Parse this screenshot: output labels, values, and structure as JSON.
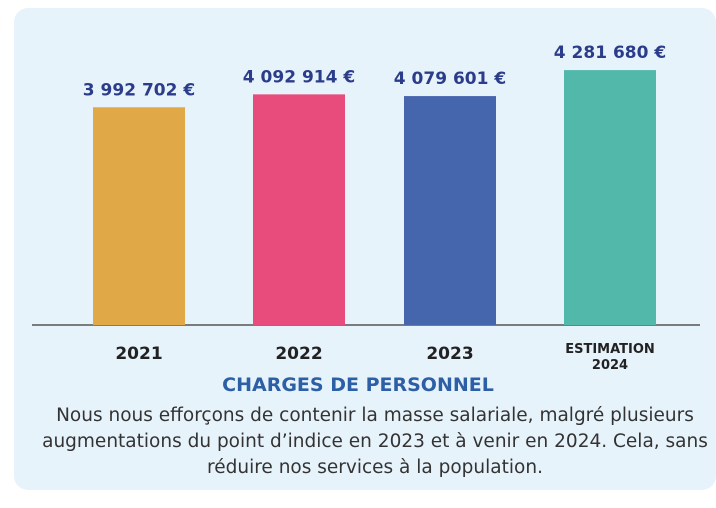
{
  "chart_data": {
    "type": "bar",
    "title": "CHARGES DE PERSONNEL",
    "caption": "Nous nous efforçons de contenir la masse salariale, malgré plusieurs augmentations du point d’indice en 2023 et à venir en 2024. Cela, sans réduire nos services à la population.",
    "categories": [
      "2021",
      "2022",
      "2023",
      "ESTIMATION 2024"
    ],
    "values": [
      3992702,
      4092914,
      4079601,
      4281680
    ],
    "value_labels": [
      "3 992 702 €",
      "4 092 914 €",
      "4 079 601 €",
      "4 281 680 €"
    ],
    "colors": [
      "#e0a847",
      "#e84c7d",
      "#4565ad",
      "#52b8a9"
    ],
    "ylim": [
      2300000,
      4500000
    ]
  }
}
